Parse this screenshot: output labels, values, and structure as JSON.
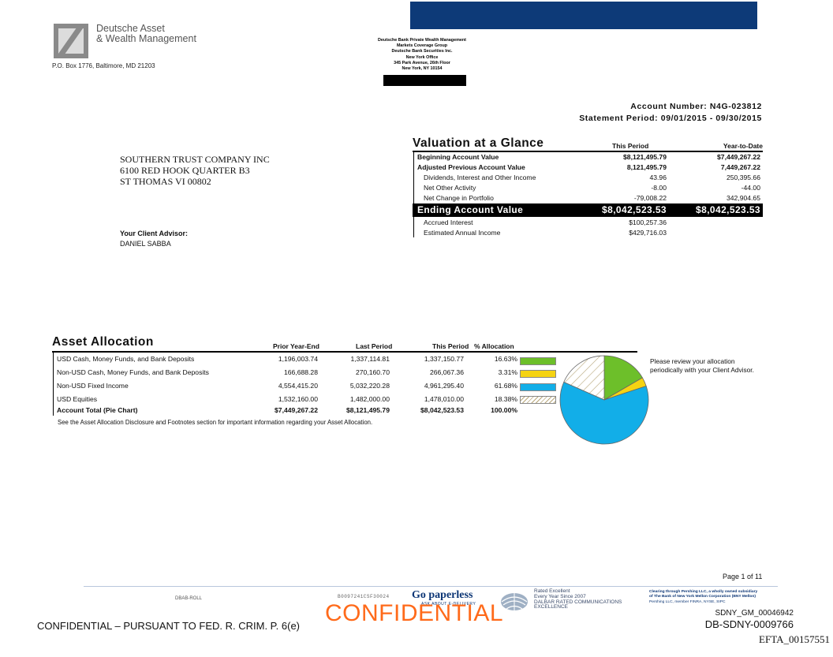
{
  "header": {
    "logo_line1": "Deutsche Asset",
    "logo_line2": "& Wealth Management",
    "po_box": "P.O. Box 1776, Baltimore, MD 21203",
    "branch": [
      "Deutsche Bank Private Wealth Management",
      "Markets Coverage Group",
      "Deutsche Bank Securities Inc.",
      "New York Office",
      "345 Park Avenue, 26th Floor",
      "New York, NY 10154"
    ],
    "account_number": "Account Number: N4G-023812",
    "statement_period": "Statement Period: 09/01/2015 - 09/30/2015"
  },
  "client": {
    "address": [
      "SOUTHERN TRUST COMPANY INC",
      "6100 RED HOOK QUARTER B3",
      "ST THOMAS VI 00802"
    ],
    "advisor_label": "Your Client Advisor:",
    "advisor_name": "DANIEL SABBA"
  },
  "valuation": {
    "title": "Valuation at a Glance",
    "col_period": "This Period",
    "col_ytd": "Year-to-Date",
    "rows": [
      {
        "label": "Beginning Account Value",
        "period": "$8,121,495.79",
        "ytd": "$7,449,267.22",
        "bold": true
      },
      {
        "label": "Adjusted Previous Account Value",
        "period": "8,121,495.79",
        "ytd": "7,449,267.22",
        "bold": true
      },
      {
        "label": "Dividends, Interest and Other Income",
        "period": "43.96",
        "ytd": "250,395.66"
      },
      {
        "label": "Net Other Activity",
        "period": "-8.00",
        "ytd": "-44.00"
      },
      {
        "label": "Net Change in Portfolio",
        "period": "-79,008.22",
        "ytd": "342,904.65"
      }
    ],
    "ending": {
      "label": "Ending Account Value",
      "period": "$8,042,523.53",
      "ytd": "$8,042,523.53"
    },
    "after": [
      {
        "label": "Accrued Interest",
        "period": "$100,257.36"
      },
      {
        "label": "Estimated Annual Income",
        "period": "$429,716.03"
      }
    ]
  },
  "allocation": {
    "title": "Asset Allocation",
    "headers": {
      "prior": "Prior Year-End",
      "last": "Last Period",
      "this": "This Period",
      "pct": "% Allocation"
    },
    "rows": [
      {
        "label": "USD Cash, Money Funds, and Bank Deposits",
        "prior": "1,196,003.74",
        "last": "1,337,114.81",
        "this": "1,337,150.77",
        "pct": "16.63%"
      },
      {
        "label": "Non-USD Cash, Money Funds, and Bank Deposits",
        "prior": "166,688.28",
        "last": "270,160.70",
        "this": "266,067.36",
        "pct": "3.31%"
      },
      {
        "label": "Non-USD Fixed Income",
        "prior": "4,554,415.20",
        "last": "5,032,220.28",
        "this": "4,961,295.40",
        "pct": "61.68%"
      },
      {
        "label": "USD Equities",
        "prior": "1,532,160.00",
        "last": "1,482,000.00",
        "this": "1,478,010.00",
        "pct": "18.38%"
      }
    ],
    "total": {
      "label": "Account Total (Pie Chart)",
      "prior": "$7,449,267.22",
      "last": "$8,121,495.79",
      "this": "$8,042,523.53",
      "pct": "100.00%"
    },
    "disclosure": "See the Asset Allocation Disclosure and Footnotes section for important information regarding your Asset Allocation.",
    "review_note": "Please review your allocation periodically with your Client Advisor."
  },
  "chart_data": {
    "type": "pie",
    "categories": [
      "USD Cash, Money Funds, and Bank Deposits",
      "Non-USD Cash, Money Funds, and Bank Deposits",
      "Non-USD Fixed Income",
      "USD Equities"
    ],
    "values": [
      16.63,
      3.31,
      61.68,
      18.38
    ],
    "colors": [
      "#6dbf2a",
      "#f5d312",
      "#12aee8",
      "hatched"
    ]
  },
  "footer": {
    "page": "Page 1 of 11",
    "dbab": "DBAB-ROLL",
    "barcode_text": "B0097241CSF30024",
    "go_paperless": "Go paperless",
    "go_paperless_sub": "ASK ABOUT E-DELIVERY",
    "rated": [
      "Rated Excellent",
      "Every Year Since 2007",
      "DALBAR RATED COMMUNICATIONS",
      "EXCELLENCE"
    ],
    "clearing": [
      "Clearing through Pershing LLC, a wholly owned subsidiary",
      "of The Bank of New York Mellon Corporation (BNY Mellon)",
      "Pershing LLC, member FINRA, NYSE, SIPC"
    ],
    "confidential_left": "CONFIDENTIAL – PURSUANT TO FED. R. CRIM. P. 6(e)",
    "confidential_center": "CONFIDENTIAL",
    "sdny_gm": "SDNY_GM_00046942",
    "db_sdny": "DB-SDNY-0009766",
    "efta": "EFTA_00157551"
  }
}
